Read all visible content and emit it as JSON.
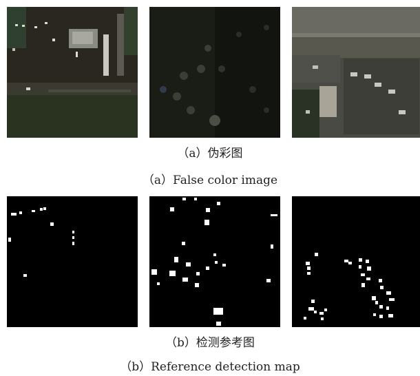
{
  "figure": {
    "row_a": {
      "caption_cn": "（a）伪彩图",
      "caption_en": "（a）False color image"
    },
    "row_b": {
      "caption_cn": "（b）检测参考图",
      "caption_en": "（b）Reference detection map"
    }
  }
}
